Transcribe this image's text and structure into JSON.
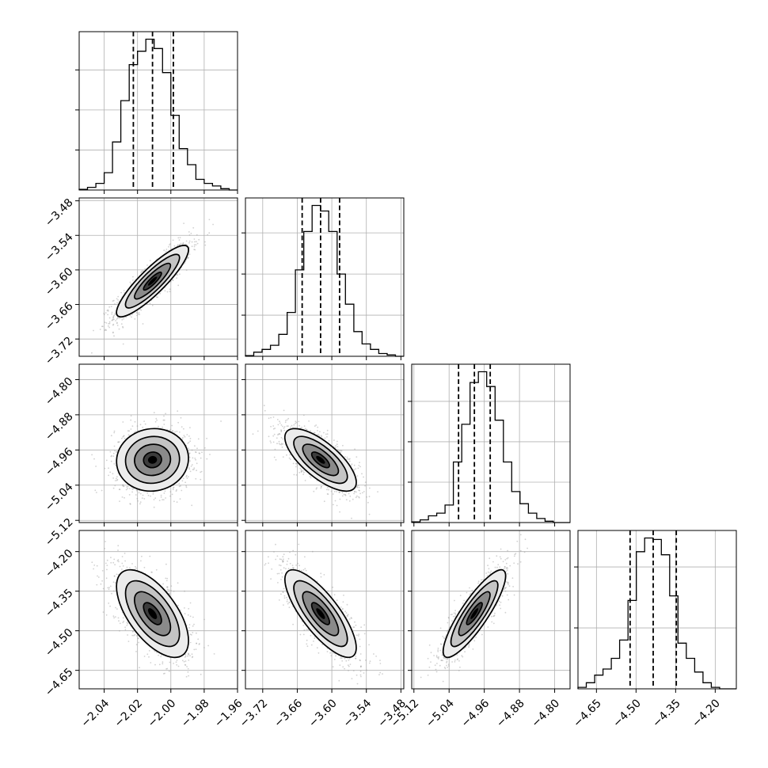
{
  "chart_data": {
    "type": "corner",
    "parameters": 4,
    "axis_labels": [
      "",
      "",
      "",
      ""
    ],
    "colors": {
      "ink": "#000000",
      "grid": "#b0b0b0",
      "scatter": "#9a9a9a"
    },
    "grid": true,
    "ranges": [
      [
        -2.055,
        -1.96
      ],
      [
        -3.75,
        -3.475
      ],
      [
        -5.125,
        -4.765
      ],
      [
        -4.72,
        -4.12
      ]
    ],
    "ticks": [
      [
        -2.04,
        -2.02,
        -2.0,
        -1.98,
        -1.96
      ],
      [
        -3.72,
        -3.66,
        -3.6,
        -3.54,
        -3.48
      ],
      [
        -5.12,
        -5.04,
        -4.96,
        -4.88,
        -4.8
      ],
      [
        -4.65,
        -4.5,
        -4.35,
        -4.2
      ]
    ],
    "tick_labels": [
      [
        "−2.04",
        "−2.02",
        "−2.00",
        "−1.98",
        "−1.96"
      ],
      [
        "−3.72",
        "−3.66",
        "−3.60",
        "−3.54",
        "−3.48"
      ],
      [
        "−5.12",
        "−5.04",
        "−4.96",
        "−4.88",
        "−4.80"
      ],
      [
        "−4.65",
        "−4.50",
        "−4.35",
        "−4.20"
      ]
    ],
    "quantiles": [
      [
        -2.0225,
        -2.011,
        -1.9985
      ],
      [
        -3.6515,
        -3.6195,
        -3.5865
      ],
      [
        -5.0185,
        -4.9825,
        -4.9465
      ],
      [
        -4.5225,
        -4.435,
        -4.3475
      ]
    ],
    "histograms": [
      {
        "bin_edges": [
          -2.055,
          -2.05,
          -2.045,
          -2.04,
          -2.035,
          -2.03,
          -2.025,
          -2.02,
          -2.015,
          -2.01,
          -2.005,
          -2.0,
          -1.995,
          -1.99,
          -1.985,
          -1.98,
          -1.975,
          -1.97,
          -1.965,
          -1.96
        ],
        "counts": [
          0.5,
          2,
          5,
          13,
          36,
          67,
          94,
          104,
          113,
          106,
          88,
          56,
          31,
          19,
          8,
          5,
          3,
          1,
          0
        ],
        "yticks": [
          30,
          60,
          90
        ]
      },
      {
        "bin_edges": [
          -3.75,
          -3.7355,
          -3.7211,
          -3.7066,
          -3.6921,
          -3.6776,
          -3.6632,
          -3.6487,
          -3.6342,
          -3.6197,
          -3.6053,
          -3.5908,
          -3.5763,
          -3.5618,
          -3.5474,
          -3.5329,
          -3.5184,
          -3.5039,
          -3.4895,
          -3.475
        ],
        "counts": [
          0.5,
          3,
          5,
          8,
          16,
          32,
          63,
          91,
          110,
          106,
          91,
          60,
          38,
          18,
          9,
          5,
          2,
          1,
          0
        ],
        "yticks": [
          30,
          60,
          90
        ]
      },
      {
        "bin_edges": [
          -5.125,
          -5.106,
          -5.0871,
          -5.0682,
          -5.0492,
          -5.0303,
          -5.0113,
          -4.9924,
          -4.9734,
          -4.9545,
          -4.9355,
          -4.9166,
          -4.8976,
          -4.8787,
          -4.8597,
          -4.8408,
          -4.8218,
          -4.8029,
          -4.7839,
          -4.765
        ],
        "counts": [
          0.5,
          2,
          5,
          7,
          13,
          45,
          73,
          104,
          112,
          101,
          76,
          45,
          23,
          14,
          7,
          3,
          1,
          0,
          0
        ],
        "yticks": [
          30,
          60,
          90
        ]
      },
      {
        "bin_edges": [
          -4.72,
          -4.6884,
          -4.6568,
          -4.6253,
          -4.5937,
          -4.5621,
          -4.5305,
          -4.4989,
          -4.4674,
          -4.4358,
          -4.4042,
          -4.3726,
          -4.3411,
          -4.3095,
          -4.2779,
          -4.2463,
          -4.2147,
          -4.1832,
          -4.1516,
          -4.12
        ],
        "counts": [
          1,
          4,
          9,
          13,
          20,
          32,
          58,
          90,
          99,
          98,
          88,
          61,
          30,
          20,
          11,
          4,
          1,
          0,
          0
        ],
        "yticks": [
          40,
          80
        ]
      }
    ],
    "pairs": [
      {
        "x": 0,
        "y": 1,
        "mean": [
          -2.011,
          -3.6195
        ],
        "sd": [
          0.0108,
          0.031
        ],
        "rho": 0.88
      },
      {
        "x": 0,
        "y": 2,
        "mean": [
          -2.011,
          -4.9825
        ],
        "sd": [
          0.0108,
          0.0355
        ],
        "rho": 0.05
      },
      {
        "x": 1,
        "y": 2,
        "mean": [
          -3.6195,
          -4.9825
        ],
        "sd": [
          0.031,
          0.0355
        ],
        "rho": -0.72
      },
      {
        "x": 0,
        "y": 3,
        "mean": [
          -2.011,
          -4.435
        ],
        "sd": [
          0.0108,
          0.083
        ],
        "rho": -0.62
      },
      {
        "x": 1,
        "y": 3,
        "mean": [
          -3.6195,
          -4.435
        ],
        "sd": [
          0.031,
          0.083
        ],
        "rho": -0.78
      },
      {
        "x": 2,
        "y": 3,
        "mean": [
          -4.9825,
          -4.435
        ],
        "sd": [
          0.0355,
          0.083
        ],
        "rho": 0.86
      }
    ],
    "contour_levels_sigma": [
      0.5,
      1.0,
      1.5,
      2.0
    ]
  }
}
